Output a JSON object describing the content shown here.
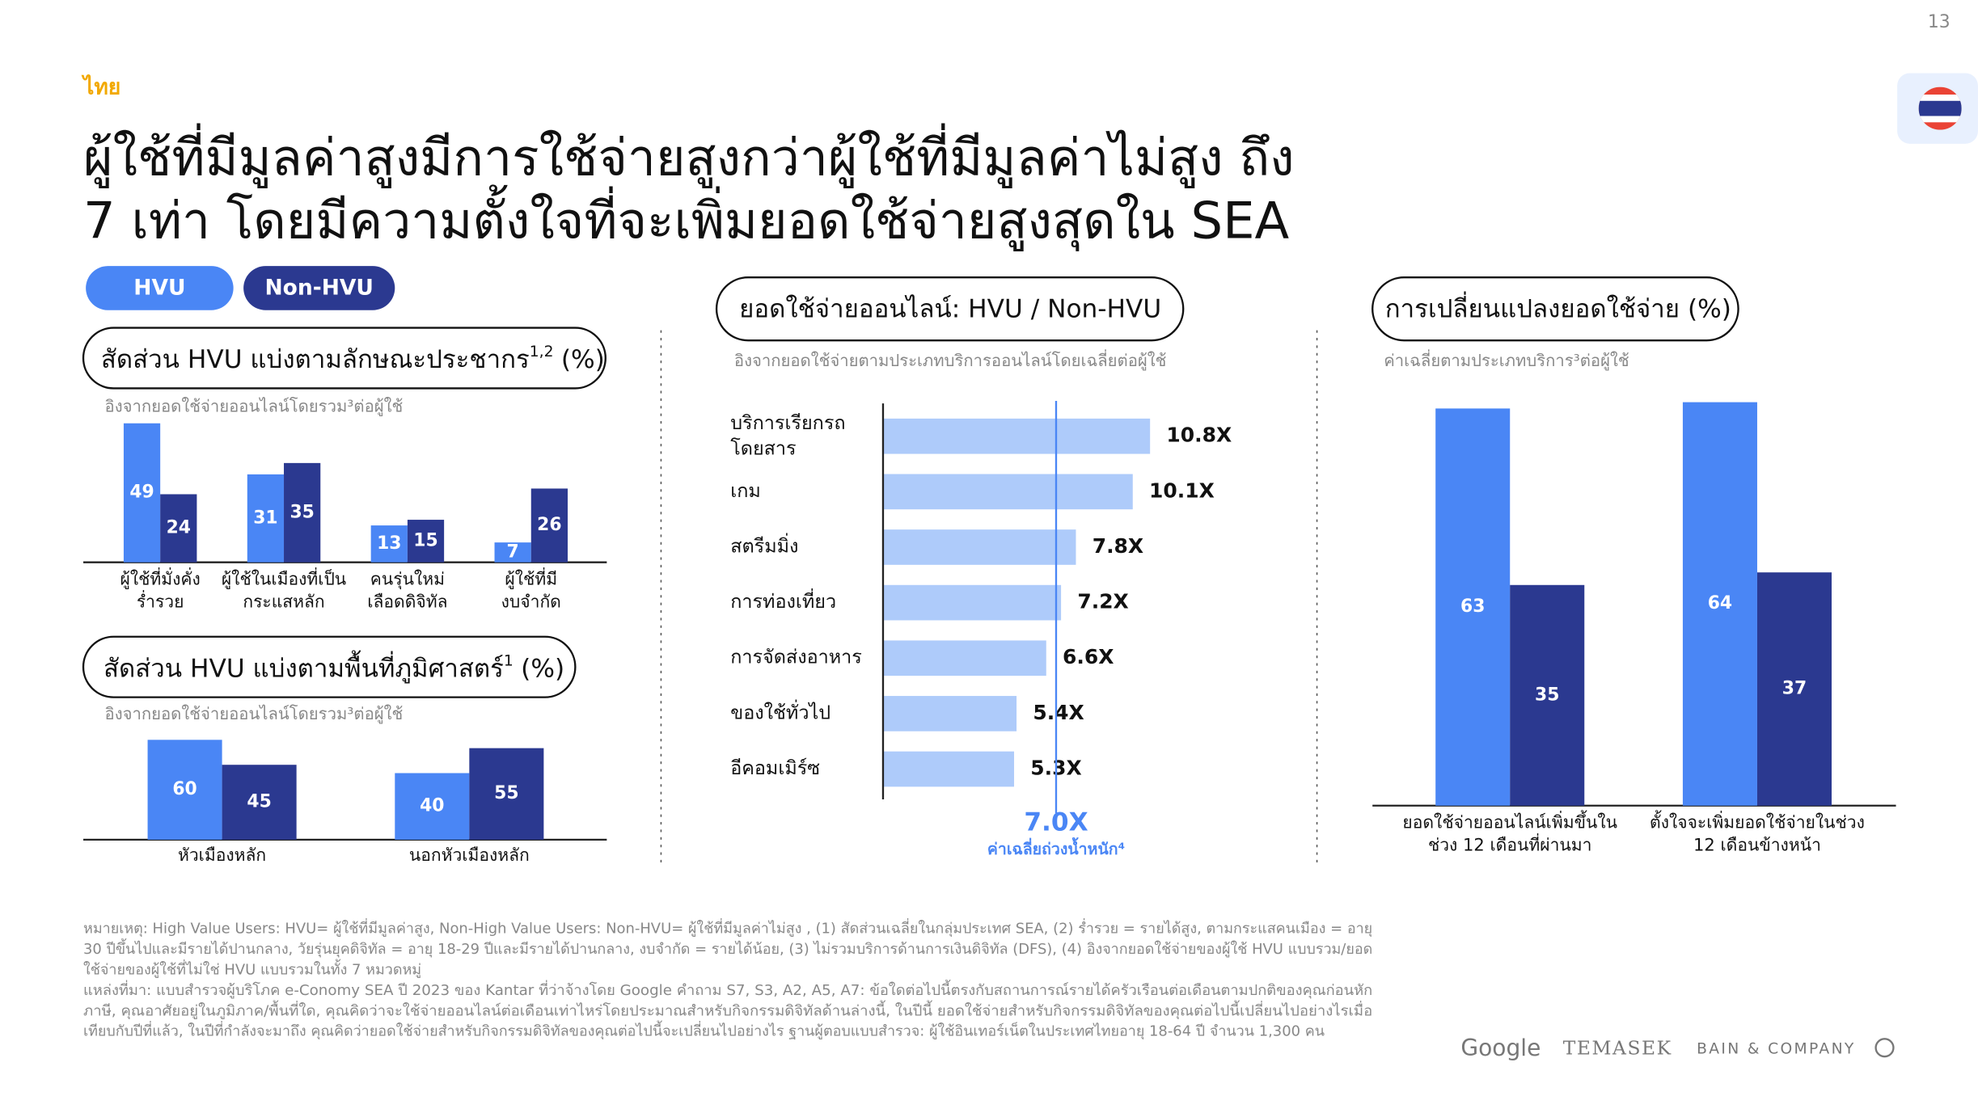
{
  "page_number": "13",
  "country": "ไทย",
  "title": [
    "ผู้ใช้ที่มีมูลค่าสูงมีการใช้จ่ายสูงกว่าผู้ใช้ที่มีมูลค่าไม่สูง ถึง",
    "7 เท่า โดยมีความตั้งใจที่จะเพิ่มยอดใช้จ่ายสูงสุดใน SEA"
  ],
  "chart_data": [
    {
      "type": "bar",
      "title": "สัดส่วน HVU แบ่งตามลักษณะประชากร",
      "title_superscript": "1,2",
      "title_unit": "(%)",
      "subtitle": "อิงจากยอดใช้จ่ายออนไลน์โดยรวม³ต่อผู้ใช้",
      "categories": [
        "ผู้ใช้ที่มั่งคั่ง\nร่ำรวย",
        "ผู้ใช้ในเมืองที่เป็น\nกระแสหลัก",
        "คนรุ่นใหม่\nเลือดดิจิทัล",
        "ผู้ใช้ที่มี\nงบจำกัด"
      ],
      "series": [
        {
          "name": "HVU",
          "color": "#4a86f5",
          "values": [
            49,
            31,
            13,
            7
          ]
        },
        {
          "name": "Non-HVU",
          "color": "#2b3990",
          "values": [
            24,
            35,
            15,
            26
          ]
        }
      ]
    },
    {
      "type": "bar",
      "title": "สัดส่วน HVU แบ่งตามพื้นที่ภูมิศาสตร์",
      "title_superscript": "1",
      "title_unit": "(%)",
      "subtitle": "อิงจากยอดใช้จ่ายออนไลน์โดยรวม³ต่อผู้ใช้",
      "categories": [
        "หัวเมืองหลัก",
        "นอกหัวเมืองหลัก"
      ],
      "series": [
        {
          "color": "#4a86f5",
          "values": [
            60,
            40
          ]
        },
        {
          "color": "#2b3990",
          "values": [
            45,
            55
          ]
        }
      ]
    },
    {
      "type": "hbar",
      "title": "ยอดใช้จ่ายออนไลน์: HVU /  Non-HVU",
      "subtitle": "อิงจากยอดใช้จ่ายตามประเภทบริการออนไลน์โดยเฉลี่ยต่อผู้ใช้",
      "categories": [
        "บริการเรียกรถ\nโดยสาร",
        "เกม",
        "สตรีมมิ่ง",
        "การท่องเที่ยว",
        "การจัดส่งอาหาร",
        "ของใช้ทั่วไป",
        "อีคอมเมิร์ซ"
      ],
      "values": [
        10.8,
        10.1,
        7.8,
        7.2,
        6.6,
        5.4,
        5.3
      ],
      "value_labels": [
        "10.8X",
        "10.1X",
        "7.8X",
        "7.2X",
        "6.6X",
        "5.4X",
        "5.3X"
      ],
      "color": "#aecbfa",
      "reference_line": {
        "value": 7.0,
        "label": "7.0X",
        "note": "ค่าเฉลี่ยถ่วงน้ำหนัก⁴",
        "color": "#4a86f5"
      }
    },
    {
      "type": "bar",
      "title": "การเปลี่ยนแปลงยอดใช้จ่าย (%)",
      "subtitle": "ค่าเฉลี่ยตามประเภทบริการ³ต่อผู้ใช้",
      "categories": [
        "ยอดใช้จ่ายออนไลน์เพิ่มขึ้นใน\nช่วง 12 เดือนที่ผ่านมา",
        "ตั้งใจจะเพิ่มยอดใช้จ่ายในช่วง\n12 เดือนข้างหน้า"
      ],
      "series": [
        {
          "color": "#4a86f5",
          "values": [
            63,
            64
          ]
        },
        {
          "color": "#2b3990",
          "values": [
            35,
            37
          ]
        }
      ]
    }
  ],
  "notes": [
    [
      "หมายเหตุ: High Value Users: HVU= ผู้ใช้ที่มีมูลค่าสูง, Non-High Value Users: Non-HVU= ผู้ใช้ที่มีมูลค่าไม่สูง , (1) สัดส่วนเฉลี่ยในกลุ่มประเทศ SEA, (2) ร่ำรวย = รายได้สูง, ตามกระแสคนเมือง = อายุ",
      "30 ปีขึ้นไปและมีรายได้ปานกลาง, วัยรุ่นยุคดิจิทัล = อายุ 18-29 ปีและมีรายได้ปานกลาง, งบจำกัด = รายได้น้อย, (3) ไม่รวมบริการด้านการเงินดิจิทัล (DFS), (4) อิงจากยอดใช้จ่ายของผู้ใช้ HVU แบบรวม/ยอด",
      "ใช้จ่ายของผู้ใช้ที่ไม่ใช่ HVU แบบรวมในทั้ง 7 หมวดหมู่"
    ],
    [
      "แหล่งที่มา: แบบสำรวจผู้บริโภค e-Conomy SEA ปี 2023 ของ Kantar ที่ว่าจ้างโดย Google คำถาม S7, S3, A2, A5, A7: ข้อใดต่อไปนี้ตรงกับสถานการณ์รายได้ครัวเรือนต่อเดือนตามปกติของคุณก่อนหัก",
      "ภาษี, คุณอาศัยอยู่ในภูมิภาค/พื้นที่ใด, คุณคิดว่าจะใช้จ่ายออนไลน์ต่อเดือนเท่าไหร่โดยประมาณสำหรับกิจกรรมดิจิทัลด้านล่างนี้, ในปีนี้ ยอดใช้จ่ายสำหรับกิจกรรมดิจิทัลของคุณต่อไปนี้เปลี่ยนไปอย่างไรเมื่อ",
      "เทียบกับปีที่แล้ว, ในปีที่กำลังจะมาถึง คุณคิดว่ายอดใช้จ่ายสำหรับกิจกรรมดิจิทัลของคุณต่อไปนี้จะเปลี่ยนไปอย่างไร ฐานผู้ตอบแบบสำรวจ: ผู้ใช้อินเทอร์เน็ตในประเทศไทยอายุ 18-64 ปี จำนวน 1,300 คน"
    ]
  ],
  "logos": [
    "Google",
    "TEMASEK",
    "BAIN & COMPANY"
  ]
}
